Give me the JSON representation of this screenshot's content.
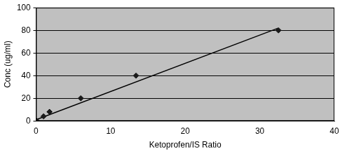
{
  "chart_data": {
    "type": "scatter",
    "x_label": "Ketoprofen/IS Ratio",
    "y_label": "Conc (ug/ml)",
    "xlim": [
      0,
      40
    ],
    "xticks": [
      0,
      10,
      20,
      30,
      40
    ],
    "ylim": [
      0,
      100
    ],
    "yticks": [
      0,
      20,
      40,
      60,
      80,
      100
    ],
    "grid": "y",
    "series": [
      {
        "type": "scatter",
        "marker": "diamond",
        "color": "#1a1a1a",
        "x": [
          0.1,
          1.0,
          1.8,
          6.0,
          13.4,
          32.5
        ],
        "values": [
          0,
          4,
          8,
          20,
          40,
          80
        ]
      },
      {
        "type": "line",
        "line_style": "solid",
        "color": "#000000",
        "x": [
          0,
          32.5
        ],
        "values": [
          1,
          82
        ]
      }
    ]
  }
}
